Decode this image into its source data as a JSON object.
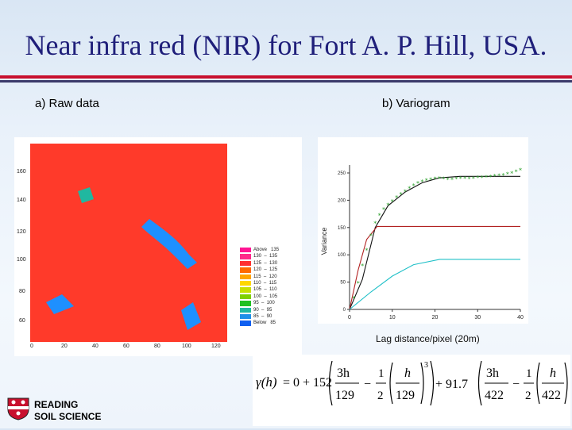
{
  "slide": {
    "title": "Near infra red (NIR) for Fort A. P. Hill, USA.",
    "label_a": "a) Raw data",
    "label_b": "b) Variogram",
    "lag_label": "Lag distance/pixel (20m)",
    "logo_line1": "READING",
    "logo_line2": "SOIL SCIENCE"
  },
  "raw_map": {
    "y_ticks": [
      "160",
      "140",
      "120",
      "100",
      "80",
      "60"
    ],
    "x_ticks": [
      "0",
      "20",
      "40",
      "60",
      "80",
      "100",
      "120"
    ],
    "legend": [
      {
        "label": "Above   135",
        "color": "#ff1493"
      },
      {
        "label": "130  –  135",
        "color": "#ff2a8a"
      },
      {
        "label": "125  –  130",
        "color": "#ff3030"
      },
      {
        "label": "120  –  125",
        "color": "#ff6a00"
      },
      {
        "label": "115  –  120",
        "color": "#ffa500"
      },
      {
        "label": "110  –  115",
        "color": "#ffd700"
      },
      {
        "label": "105  –  110",
        "color": "#c8e000"
      },
      {
        "label": "100  –  105",
        "color": "#7fd000"
      },
      {
        "label": "95  –  100",
        "color": "#20c020"
      },
      {
        "label": "90  –  95",
        "color": "#20b8a0"
      },
      {
        "label": "85  –  90",
        "color": "#2090e8"
      },
      {
        "label": "Below   85",
        "color": "#1060f0"
      }
    ]
  },
  "chart_data": {
    "type": "line",
    "title": "",
    "xlabel": "Lag distance/pixel (20m)",
    "ylabel": "Variance",
    "xlim": [
      0,
      40
    ],
    "ylim": [
      0,
      250
    ],
    "x_ticks": [
      "0",
      "10",
      "20",
      "30",
      "40"
    ],
    "y_ticks": [
      "0",
      "50",
      "100",
      "150",
      "200",
      "250"
    ],
    "series": [
      {
        "name": "",
        "color": "#111111",
        "sill": 243.7,
        "range": 25.8,
        "nugget": 0,
        "values": [
          [
            0,
            0
          ],
          [
            3,
            55
          ],
          [
            6,
            150
          ],
          [
            9,
            190
          ],
          [
            13,
            215
          ],
          [
            17,
            232
          ],
          [
            21,
            241
          ],
          [
            25.8,
            243.7
          ],
          [
            40,
            243.7
          ]
        ]
      },
      {
        "name": "",
        "color": "#b22222",
        "sill": 152,
        "range": 6.45,
        "nugget": 0,
        "values": [
          [
            0,
            0
          ],
          [
            2,
            72
          ],
          [
            4,
            128
          ],
          [
            6.45,
            152
          ],
          [
            40,
            152
          ]
        ]
      },
      {
        "name": "",
        "color": "#20c0c8",
        "sill": 91.7,
        "range": 21.1,
        "nugget": 0,
        "values": [
          [
            0,
            0
          ],
          [
            5,
            32
          ],
          [
            10,
            61
          ],
          [
            15,
            82
          ],
          [
            21.1,
            91.7
          ],
          [
            40,
            91.7
          ]
        ]
      },
      {
        "name": "",
        "color": "#2ca02c",
        "marker": "*",
        "values": [
          [
            1,
            20
          ],
          [
            2,
            48
          ],
          [
            3,
            80
          ],
          [
            4,
            108
          ],
          [
            5,
            135
          ],
          [
            6,
            158
          ],
          [
            7,
            172
          ],
          [
            8,
            183
          ],
          [
            9,
            191
          ],
          [
            10,
            198
          ],
          [
            11,
            205
          ],
          [
            12,
            211
          ],
          [
            13,
            216
          ],
          [
            14,
            222
          ],
          [
            15,
            227
          ],
          [
            16,
            231
          ],
          [
            17,
            234
          ],
          [
            18,
            236
          ],
          [
            19,
            238
          ],
          [
            20,
            239
          ],
          [
            21,
            240
          ],
          [
            22,
            239
          ],
          [
            23,
            238
          ],
          [
            24,
            238
          ],
          [
            25,
            239
          ],
          [
            26,
            240
          ],
          [
            27,
            240
          ],
          [
            28,
            239
          ],
          [
            29,
            240
          ],
          [
            30,
            241
          ],
          [
            31,
            241
          ],
          [
            32,
            242
          ],
          [
            33,
            243
          ],
          [
            34,
            244
          ],
          [
            35,
            245
          ],
          [
            36,
            246
          ],
          [
            37,
            248
          ],
          [
            38,
            249
          ],
          [
            39,
            252
          ],
          [
            40,
            255
          ]
        ]
      }
    ]
  },
  "formula": {
    "gamma": "γ(h)",
    "eq": "= 0 + 152",
    "three_h": "3h",
    "range1": "129",
    "two": "2",
    "one": "1",
    "h": "h",
    "cube": "3",
    "plus": "+ 91.7",
    "range2": "422",
    "minus": "−"
  }
}
